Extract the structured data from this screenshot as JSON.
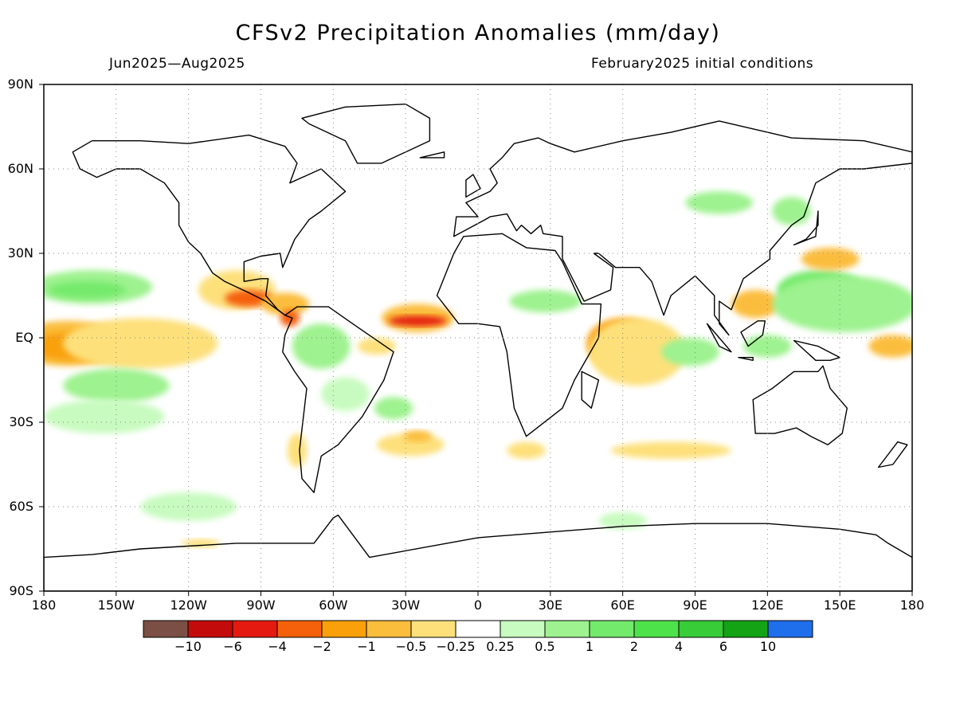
{
  "title": "CFSv2 Precipitation Anomalies (mm/day)",
  "period": "Jun2025—Aug2025",
  "initial_conditions": "February2025 initial conditions",
  "lat_labels": [
    "90N",
    "60N",
    "30N",
    "EQ",
    "30S",
    "60S",
    "90S"
  ],
  "lon_labels": [
    "180",
    "150W",
    "120W",
    "90W",
    "60W",
    "30W",
    "0",
    "30E",
    "60E",
    "90E",
    "120E",
    "150E",
    "180"
  ],
  "colorbar": {
    "colors": [
      "#7b4f45",
      "#c40b0b",
      "#e41a10",
      "#f5600a",
      "#f9a00b",
      "#fbbd3c",
      "#fde07a",
      "#ffffff",
      "#c8fbbf",
      "#9ef28f",
      "#74ea6c",
      "#4ee24a",
      "#37cc38",
      "#14a315",
      "#1f6eeb"
    ],
    "labels": [
      "−10",
      "−6",
      "−4",
      "−2",
      "−1",
      "−0.5",
      "−0.25",
      "0.25",
      "0.5",
      "1",
      "2",
      "4",
      "6",
      "10"
    ]
  },
  "regions": [
    {
      "c": "#fbbd3c",
      "lon": -170,
      "lat": -2,
      "rlon": 25,
      "rlat": 8
    },
    {
      "c": "#f9a00b",
      "lon": -168,
      "lat": -3,
      "rlon": 18,
      "rlat": 5
    },
    {
      "c": "#fbbd3c",
      "lon": -135,
      "lat": 0,
      "rlon": 16,
      "rlat": 4
    },
    {
      "c": "#fde07a",
      "lon": -140,
      "lat": -2,
      "rlon": 32,
      "rlat": 9
    },
    {
      "c": "#9ef28f",
      "lon": -160,
      "lat": 18,
      "rlon": 25,
      "rlat": 6
    },
    {
      "c": "#74ea6c",
      "lon": -162,
      "lat": 17,
      "rlon": 16,
      "rlat": 3
    },
    {
      "c": "#9ef28f",
      "lon": -150,
      "lat": -17,
      "rlon": 22,
      "rlat": 6
    },
    {
      "c": "#c8fbbf",
      "lon": -155,
      "lat": -28,
      "rlon": 25,
      "rlat": 6
    },
    {
      "c": "#fde07a",
      "lon": -100,
      "lat": 17,
      "rlon": 16,
      "rlat": 7
    },
    {
      "c": "#f5600a",
      "lon": -95,
      "lat": 14,
      "rlon": 10,
      "rlat": 3
    },
    {
      "c": "#fbbd3c",
      "lon": -80,
      "lat": 12,
      "rlon": 10,
      "rlat": 4
    },
    {
      "c": "#f5600a",
      "lon": -78,
      "lat": 7,
      "rlon": 4,
      "rlat": 3
    },
    {
      "c": "#9ef28f",
      "lon": -65,
      "lat": -3,
      "rlon": 12,
      "rlat": 8
    },
    {
      "c": "#c8fbbf",
      "lon": -55,
      "lat": -20,
      "rlon": 10,
      "rlat": 6
    },
    {
      "c": "#fbbd3c",
      "lon": -25,
      "lat": 7,
      "rlon": 15,
      "rlat": 5
    },
    {
      "c": "#e41a10",
      "lon": -25,
      "lat": 6,
      "rlon": 12,
      "rlat": 1.8
    },
    {
      "c": "#fde07a",
      "lon": -42,
      "lat": -3,
      "rlon": 8,
      "rlat": 3
    },
    {
      "c": "#fde07a",
      "lon": -28,
      "lat": -38,
      "rlon": 14,
      "rlat": 4
    },
    {
      "c": "#fbbd3c",
      "lon": -25,
      "lat": -35,
      "rlon": 6,
      "rlat": 2
    },
    {
      "c": "#9ef28f",
      "lon": -35,
      "lat": -25,
      "rlon": 8,
      "rlat": 4
    },
    {
      "c": "#9ef28f",
      "lon": 28,
      "lat": 13,
      "rlon": 15,
      "rlat": 4
    },
    {
      "c": "#f9a00b",
      "lon": 60,
      "lat": -2,
      "rlon": 15,
      "rlat": 9
    },
    {
      "c": "#fde07a",
      "lon": 66,
      "lat": -5,
      "rlon": 20,
      "rlat": 12
    },
    {
      "c": "#9ef28f",
      "lon": 88,
      "lat": -5,
      "rlon": 12,
      "rlat": 5
    },
    {
      "c": "#fbbd3c",
      "lon": 115,
      "lat": 12,
      "rlon": 10,
      "rlat": 5
    },
    {
      "c": "#74ea6c",
      "lon": 142,
      "lat": 17,
      "rlon": 18,
      "rlat": 7
    },
    {
      "c": "#9ef28f",
      "lon": 152,
      "lat": 12,
      "rlon": 30,
      "rlat": 10
    },
    {
      "c": "#fbbd3c",
      "lon": 146,
      "lat": 28,
      "rlon": 12,
      "rlat": 4
    },
    {
      "c": "#fbbd3c",
      "lon": 172,
      "lat": -3,
      "rlon": 10,
      "rlat": 4
    },
    {
      "c": "#9ef28f",
      "lon": 120,
      "lat": -3,
      "rlon": 10,
      "rlat": 4
    },
    {
      "c": "#9ef28f",
      "lon": 100,
      "lat": 48,
      "rlon": 14,
      "rlat": 4
    },
    {
      "c": "#9ef28f",
      "lon": 130,
      "lat": 45,
      "rlon": 8,
      "rlat": 5
    },
    {
      "c": "#fde07a",
      "lon": 80,
      "lat": -40,
      "rlon": 25,
      "rlat": 3
    },
    {
      "c": "#fde07a",
      "lon": 20,
      "lat": -40,
      "rlon": 8,
      "rlat": 3
    },
    {
      "c": "#c8fbbf",
      "lon": -120,
      "lat": -60,
      "rlon": 20,
      "rlat": 5
    },
    {
      "c": "#c8fbbf",
      "lon": 60,
      "lat": -65,
      "rlon": 10,
      "rlat": 3
    },
    {
      "c": "#fde07a",
      "lon": -115,
      "lat": -73,
      "rlon": 8,
      "rlat": 1.5
    },
    {
      "c": "#fde07a",
      "lon": -75,
      "lat": -40,
      "rlon": 4,
      "rlat": 6
    }
  ],
  "land": [
    [
      [
        -168,
        66
      ],
      [
        -160,
        70
      ],
      [
        -140,
        70
      ],
      [
        -120,
        69
      ],
      [
        -95,
        72
      ],
      [
        -80,
        68
      ],
      [
        -75,
        62
      ],
      [
        -78,
        55
      ],
      [
        -65,
        60
      ],
      [
        -55,
        52
      ],
      [
        -65,
        45
      ],
      [
        -70,
        42
      ],
      [
        -76,
        35
      ],
      [
        -81,
        25
      ],
      [
        -82,
        30
      ],
      [
        -90,
        29
      ],
      [
        -97,
        27
      ],
      [
        -97,
        20
      ],
      [
        -90,
        21
      ],
      [
        -87,
        21
      ],
      [
        -88,
        15
      ],
      [
        -83,
        10
      ],
      [
        -80,
        8
      ],
      [
        -88,
        13
      ],
      [
        -95,
        16
      ],
      [
        -105,
        20
      ],
      [
        -110,
        23
      ],
      [
        -115,
        30
      ],
      [
        -120,
        34
      ],
      [
        -124,
        40
      ],
      [
        -124,
        48
      ],
      [
        -130,
        55
      ],
      [
        -140,
        60
      ],
      [
        -150,
        60
      ],
      [
        -158,
        57
      ],
      [
        -165,
        60
      ],
      [
        -168,
        66
      ]
    ],
    [
      [
        -80,
        8
      ],
      [
        -75,
        11
      ],
      [
        -62,
        11
      ],
      [
        -52,
        5
      ],
      [
        -35,
        -5
      ],
      [
        -39,
        -15
      ],
      [
        -48,
        -28
      ],
      [
        -58,
        -38
      ],
      [
        -65,
        -42
      ],
      [
        -68,
        -55
      ],
      [
        -73,
        -50
      ],
      [
        -74,
        -40
      ],
      [
        -71,
        -18
      ],
      [
        -76,
        -12
      ],
      [
        -81,
        -5
      ],
      [
        -80,
        1
      ],
      [
        -77,
        7
      ],
      [
        -80,
        8
      ]
    ],
    [
      [
        -73,
        78
      ],
      [
        -55,
        82
      ],
      [
        -30,
        83
      ],
      [
        -20,
        78
      ],
      [
        -20,
        70
      ],
      [
        -40,
        62
      ],
      [
        -50,
        62
      ],
      [
        -55,
        70
      ],
      [
        -70,
        76
      ],
      [
        -73,
        78
      ]
    ],
    [
      [
        -17,
        15
      ],
      [
        -10,
        30
      ],
      [
        -6,
        36
      ],
      [
        10,
        37
      ],
      [
        20,
        32
      ],
      [
        32,
        31
      ],
      [
        35,
        27
      ],
      [
        43,
        12
      ],
      [
        51,
        12
      ],
      [
        50,
        0
      ],
      [
        40,
        -15
      ],
      [
        35,
        -25
      ],
      [
        20,
        -35
      ],
      [
        15,
        -25
      ],
      [
        12,
        -5
      ],
      [
        9,
        4
      ],
      [
        0,
        5
      ],
      [
        -8,
        5
      ],
      [
        -17,
        15
      ]
    ],
    [
      [
        -10,
        36
      ],
      [
        -9,
        43
      ],
      [
        0,
        43
      ],
      [
        -5,
        48
      ],
      [
        5,
        52
      ],
      [
        8,
        55
      ],
      [
        5,
        60
      ],
      [
        10,
        64
      ],
      [
        15,
        69
      ],
      [
        25,
        71
      ],
      [
        30,
        69
      ],
      [
        40,
        66
      ],
      [
        60,
        70
      ],
      [
        80,
        73
      ],
      [
        100,
        77
      ],
      [
        130,
        71
      ],
      [
        160,
        70
      ],
      [
        180,
        66
      ],
      [
        180,
        62
      ],
      [
        160,
        60
      ],
      [
        150,
        60
      ],
      [
        140,
        55
      ],
      [
        135,
        43
      ],
      [
        130,
        40
      ],
      [
        121,
        31
      ],
      [
        121,
        28
      ],
      [
        110,
        21
      ],
      [
        105,
        10
      ],
      [
        100,
        13
      ],
      [
        100,
        5
      ],
      [
        104,
        1
      ],
      [
        98,
        8
      ],
      [
        98,
        15
      ],
      [
        90,
        22
      ],
      [
        80,
        15
      ],
      [
        77,
        8
      ],
      [
        72,
        20
      ],
      [
        67,
        25
      ],
      [
        57,
        25
      ],
      [
        50,
        30
      ],
      [
        48,
        30
      ],
      [
        56,
        25
      ],
      [
        55,
        17
      ],
      [
        44,
        13
      ],
      [
        35,
        28
      ],
      [
        35,
        36
      ],
      [
        27,
        37
      ],
      [
        26,
        40
      ],
      [
        22,
        37
      ],
      [
        18,
        40
      ],
      [
        16,
        38
      ],
      [
        12,
        44
      ],
      [
        5,
        43
      ],
      [
        3,
        42
      ],
      [
        -10,
        36
      ]
    ],
    [
      [
        114,
        -22
      ],
      [
        122,
        -18
      ],
      [
        131,
        -12
      ],
      [
        137,
        -12
      ],
      [
        141,
        -12
      ],
      [
        143,
        -10
      ],
      [
        146,
        -18
      ],
      [
        153,
        -25
      ],
      [
        151,
        -34
      ],
      [
        145,
        -38
      ],
      [
        138,
        -35
      ],
      [
        132,
        -32
      ],
      [
        123,
        -34
      ],
      [
        115,
        -34
      ],
      [
        114,
        -22
      ]
    ],
    [
      [
        -180,
        -78
      ],
      [
        -160,
        -77
      ],
      [
        -140,
        -75
      ],
      [
        -100,
        -73
      ],
      [
        -68,
        -73
      ],
      [
        -60,
        -64
      ],
      [
        -58,
        -63
      ],
      [
        -45,
        -78
      ],
      [
        0,
        -71
      ],
      [
        30,
        -69
      ],
      [
        60,
        -67
      ],
      [
        90,
        -66
      ],
      [
        120,
        -66
      ],
      [
        150,
        -68
      ],
      [
        165,
        -70
      ],
      [
        170,
        -73
      ],
      [
        180,
        -78
      ],
      [
        180,
        -90
      ],
      [
        -180,
        -90
      ]
    ],
    [
      [
        -5,
        50
      ],
      [
        -5,
        56
      ],
      [
        -2,
        58
      ],
      [
        1,
        53
      ],
      [
        -5,
        50
      ]
    ],
    [
      [
        95,
        5
      ],
      [
        100,
        0
      ],
      [
        105,
        -5
      ],
      [
        100,
        -3
      ],
      [
        95,
        5
      ]
    ],
    [
      [
        108,
        -7
      ],
      [
        114,
        -8
      ],
      [
        114,
        -7
      ],
      [
        108,
        -7
      ]
    ],
    [
      [
        109,
        2
      ],
      [
        112,
        -3
      ],
      [
        118,
        1
      ],
      [
        119,
        6
      ],
      [
        116,
        6
      ],
      [
        109,
        2
      ]
    ],
    [
      [
        43,
        -12
      ],
      [
        50,
        -15
      ],
      [
        47,
        -25
      ],
      [
        43,
        -22
      ],
      [
        43,
        -12
      ]
    ],
    [
      [
        131,
        33
      ],
      [
        136,
        35
      ],
      [
        141,
        40
      ],
      [
        141,
        45
      ],
      [
        140,
        36
      ],
      [
        131,
        33
      ]
    ],
    [
      [
        131,
        -1
      ],
      [
        141,
        -3
      ],
      [
        150,
        -7
      ],
      [
        146,
        -8
      ],
      [
        140,
        -8
      ],
      [
        131,
        -1
      ]
    ],
    [
      [
        -24,
        64
      ],
      [
        -14,
        66
      ],
      [
        -14,
        64
      ],
      [
        -24,
        64
      ]
    ],
    [
      [
        166,
        -46
      ],
      [
        174,
        -37
      ],
      [
        178,
        -38
      ],
      [
        172,
        -45
      ],
      [
        166,
        -46
      ]
    ]
  ]
}
